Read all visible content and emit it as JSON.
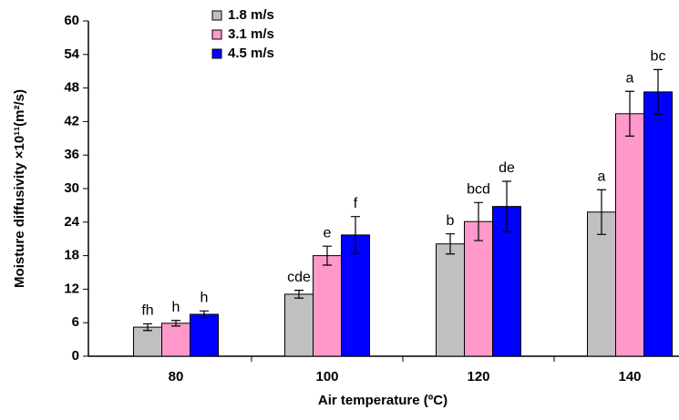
{
  "chart_data": {
    "type": "bar",
    "x_label": "Air temperature (ºC)",
    "y_label": "Moisture diffusivity ×10¹¹(m²/s)",
    "categories": [
      "80",
      "100",
      "120",
      "140"
    ],
    "series": [
      {
        "name": "1.8 m/s",
        "color": "#c0c0c0",
        "values": [
          5.2,
          11.1,
          20.1,
          25.8
        ],
        "errors": [
          0.6,
          0.7,
          1.8,
          4.0
        ],
        "annotations": [
          "fh",
          "cde",
          "b",
          "a"
        ]
      },
      {
        "name": "3.1 m/s",
        "color": "#ff99cc",
        "values": [
          5.9,
          18.0,
          24.1,
          43.4
        ],
        "errors": [
          0.5,
          1.7,
          3.4,
          4.0
        ],
        "annotations": [
          "h",
          "e",
          "bcd",
          "a"
        ]
      },
      {
        "name": "4.5 m/s",
        "color": "#0000ff",
        "values": [
          7.5,
          21.7,
          26.8,
          47.3
        ],
        "errors": [
          0.6,
          3.3,
          4.5,
          4.0
        ],
        "annotations": [
          "h",
          "f",
          "de",
          "bc"
        ]
      }
    ],
    "ylim": [
      0,
      60
    ],
    "yticks": [
      0,
      6,
      12,
      18,
      24,
      30,
      36,
      42,
      48,
      54,
      60
    ],
    "legend": "top-left"
  }
}
